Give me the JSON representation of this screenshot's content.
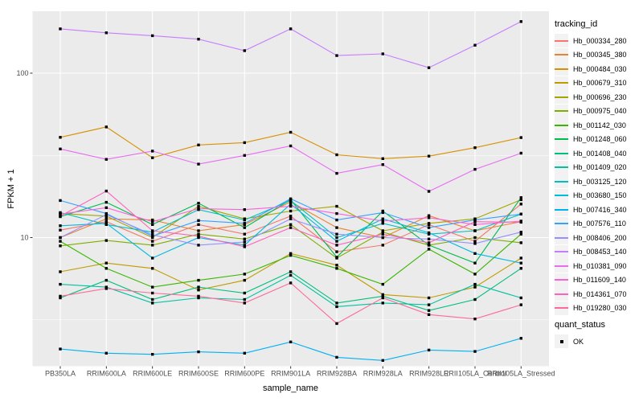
{
  "theme": {
    "background": "#FFFFFF",
    "panel_background": "#EBEBEB",
    "grid_color": "#FFFFFF",
    "tick_label_color": "#4D4D4D",
    "axis_title_color": "#000000",
    "point_color": "#000000",
    "axis_tick_color": "#333333",
    "legend_key_background": "#F2F2F2"
  },
  "chart_data": {
    "type": "line",
    "title": "",
    "xlabel": "sample_name",
    "ylabel": "FPKM + 1",
    "y_scale": "log10",
    "grid": true,
    "legend_position": "right",
    "point_shape": "square",
    "ylim": [
      1.65,
      238
    ],
    "y_ticks": [
      {
        "value": 10,
        "label": "10"
      },
      {
        "value": 100,
        "label": "100"
      }
    ],
    "y_minor_ticks": [
      3.162,
      31.62
    ],
    "categories": [
      "PB350LA",
      "RRIM600LA",
      "RRIM600LE",
      "RRIM600SE",
      "RRIM600PE",
      "RRIM901LA",
      "RRIM928BA",
      "RRIM928LA",
      "RRIM928LE",
      "RRII105LA_Control",
      "RRII105LA_Stressed"
    ],
    "series": [
      {
        "name": "Hb_000334_280",
        "color": "#F8766D",
        "values": [
          11.1,
          12.5,
          9.5,
          12.0,
          10.5,
          13.5,
          8.2,
          9.0,
          12.0,
          9.5,
          16.0
        ]
      },
      {
        "name": "Hb_000345_380",
        "color": "#EA8331",
        "values": [
          10.0,
          13.0,
          12.8,
          11.0,
          12.0,
          16.5,
          11.5,
          10.0,
          13.6,
          11.0,
          12.5
        ]
      },
      {
        "name": "Hb_000484_030",
        "color": "#D89000",
        "values": [
          40.7,
          47.1,
          30.6,
          36.6,
          37.8,
          43.7,
          31.9,
          30.2,
          31.3,
          35.2,
          40.6
        ]
      },
      {
        "name": "Hb_000679_310",
        "color": "#C09B00",
        "values": [
          6.2,
          7.0,
          6.5,
          4.8,
          5.5,
          8.0,
          6.8,
          4.5,
          4.3,
          5.0,
          7.5
        ]
      },
      {
        "name": "Hb_000696_230",
        "color": "#A3A500",
        "values": [
          14.0,
          13.5,
          10.0,
          15.5,
          13.0,
          14.5,
          15.5,
          11.0,
          12.2,
          13.0,
          17.0
        ]
      },
      {
        "name": "Hb_000975_040",
        "color": "#7CAE00",
        "values": [
          8.9,
          9.6,
          9.0,
          10.5,
          9.8,
          12.0,
          7.5,
          10.8,
          9.0,
          10.0,
          9.3
        ]
      },
      {
        "name": "Hb_001142_030",
        "color": "#39B600",
        "values": [
          9.5,
          6.5,
          5.0,
          5.5,
          6.0,
          7.8,
          6.5,
          5.2,
          8.5,
          6.0,
          10.5
        ]
      },
      {
        "name": "Hb_001248_060",
        "color": "#00BB4E",
        "values": [
          13.4,
          16.4,
          12.0,
          16.2,
          11.5,
          17.0,
          7.6,
          14.5,
          9.0,
          7.0,
          17.5
        ]
      },
      {
        "name": "Hb_001408_040",
        "color": "#00BF7D",
        "values": [
          4.3,
          5.5,
          4.2,
          5.0,
          4.6,
          6.2,
          4.0,
          4.4,
          3.6,
          4.2,
          6.5
        ]
      },
      {
        "name": "Hb_001409_020",
        "color": "#00C1A3",
        "values": [
          5.2,
          5.0,
          4.0,
          4.3,
          4.2,
          5.9,
          3.8,
          4.0,
          3.9,
          5.2,
          4.3
        ]
      },
      {
        "name": "Hb_003125_120",
        "color": "#00BFC4",
        "values": [
          14.2,
          12.0,
          10.8,
          14.8,
          12.8,
          16.8,
          10.0,
          12.2,
          10.5,
          11.0,
          13.9
        ]
      },
      {
        "name": "Hb_003680_150",
        "color": "#00BAE0",
        "values": [
          11.8,
          12.2,
          7.5,
          10.0,
          9.0,
          16.0,
          9.5,
          13.0,
          10.7,
          8.0,
          7.0
        ]
      },
      {
        "name": "Hb_007416_340",
        "color": "#00B0F6",
        "values": [
          2.1,
          1.98,
          1.95,
          2.02,
          1.98,
          2.32,
          1.87,
          1.79,
          2.07,
          2.03,
          2.44
        ]
      },
      {
        "name": "Hb_007576_110",
        "color": "#35A2FF",
        "values": [
          16.8,
          14.0,
          10.2,
          12.7,
          12.2,
          17.2,
          12.8,
          14.2,
          11.5,
          12.8,
          13.9
        ]
      },
      {
        "name": "Hb_008406_200",
        "color": "#9590FF",
        "values": [
          10.0,
          13.8,
          10.4,
          9.0,
          9.4,
          13.0,
          10.5,
          10.0,
          9.8,
          9.2,
          10.8
        ]
      },
      {
        "name": "Hb_008453_140",
        "color": "#C77CFF",
        "values": [
          186,
          176,
          169,
          161,
          137,
          186,
          128,
          131,
          108,
          148,
          206
        ]
      },
      {
        "name": "Hb_010381_090",
        "color": "#E76BF3",
        "values": [
          34.6,
          29.9,
          33.6,
          28.0,
          31.6,
          36.1,
          24.6,
          27.8,
          19.1,
          26.0,
          32.6
        ]
      },
      {
        "name": "Hb_011609_140",
        "color": "#FA62DB",
        "values": [
          13.9,
          15.2,
          12.5,
          15.0,
          14.8,
          15.5,
          14.0,
          12.6,
          13.2,
          12.0,
          12.6
        ]
      },
      {
        "name": "Hb_014361_070",
        "color": "#FF62BC",
        "values": [
          13.5,
          19.2,
          11.0,
          10.2,
          8.8,
          11.5,
          9.0,
          10.5,
          9.3,
          12.5,
          12.4
        ]
      },
      {
        "name": "Hb_019280_030",
        "color": "#FF6A98",
        "values": [
          4.4,
          4.9,
          4.6,
          4.4,
          4.0,
          5.3,
          3.0,
          4.3,
          3.4,
          3.2,
          3.9
        ]
      }
    ],
    "legends": {
      "tracking": {
        "title": "tracking_id"
      },
      "quant": {
        "title": "quant_status",
        "items": [
          {
            "label": "OK"
          }
        ]
      }
    }
  }
}
